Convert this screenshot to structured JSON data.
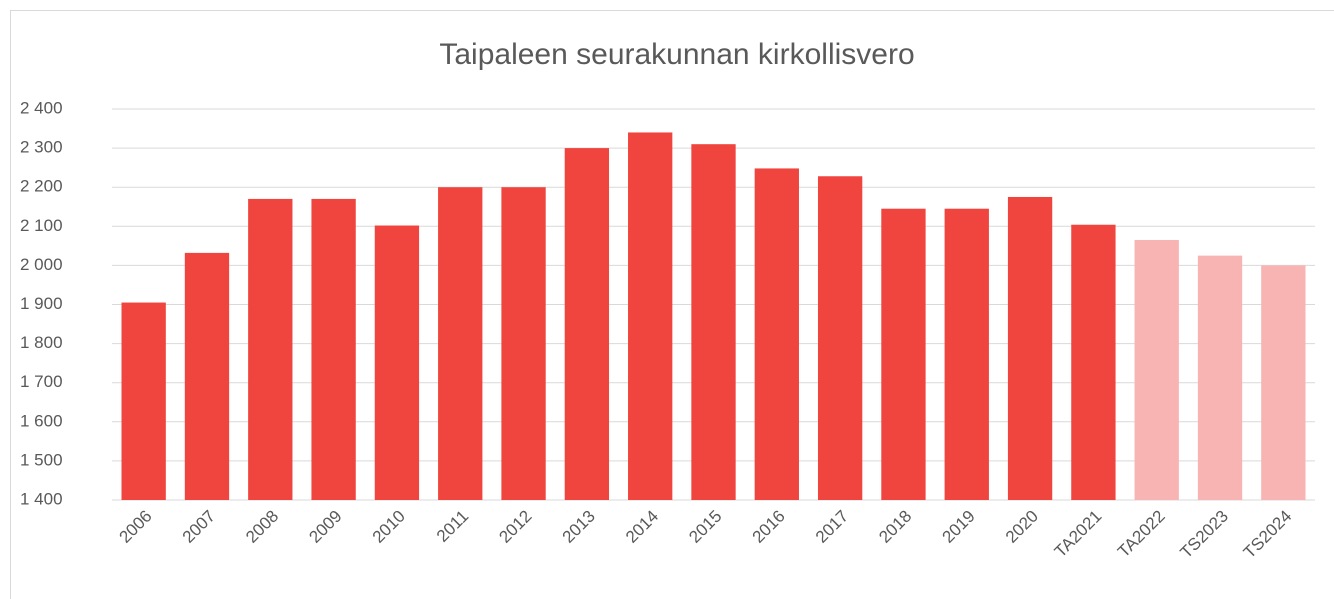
{
  "chart_data": {
    "type": "bar",
    "title": "Taipaleen seurakunnan kirkollisvero",
    "categories": [
      "2006",
      "2007",
      "2008",
      "2009",
      "2010",
      "2011",
      "2012",
      "2013",
      "2014",
      "2015",
      "2016",
      "2017",
      "2018",
      "2019",
      "2020",
      "TA2021",
      "TA2022",
      "TS2023",
      "TS2024"
    ],
    "values": [
      1905,
      2032,
      2170,
      2170,
      2102,
      2200,
      2200,
      2300,
      2340,
      2310,
      2248,
      2228,
      2145,
      2145,
      2175,
      2104,
      2065,
      2025,
      2000
    ],
    "colors": [
      "#f0443e",
      "#f0443e",
      "#f0443e",
      "#f0443e",
      "#f0443e",
      "#f0443e",
      "#f0443e",
      "#f0443e",
      "#f0443e",
      "#f0443e",
      "#f0443e",
      "#f0443e",
      "#f0443e",
      "#f0443e",
      "#f0443e",
      "#f0443e",
      "#f8b4b2",
      "#f8b4b2",
      "#f8b4b2"
    ],
    "ylim": [
      1400,
      2400
    ],
    "yticks": [
      {
        "value": 1400,
        "label": "1 400"
      },
      {
        "value": 1500,
        "label": "1 500"
      },
      {
        "value": 1600,
        "label": "1 600"
      },
      {
        "value": 1700,
        "label": "1 700"
      },
      {
        "value": 1800,
        "label": "1 800"
      },
      {
        "value": 1900,
        "label": "1 900"
      },
      {
        "value": 2000,
        "label": "2 000"
      },
      {
        "value": 2100,
        "label": "2 100"
      },
      {
        "value": 2200,
        "label": "2 200"
      },
      {
        "value": 2300,
        "label": "2 300"
      },
      {
        "value": 2400,
        "label": "2 400"
      }
    ],
    "grid": true
  }
}
